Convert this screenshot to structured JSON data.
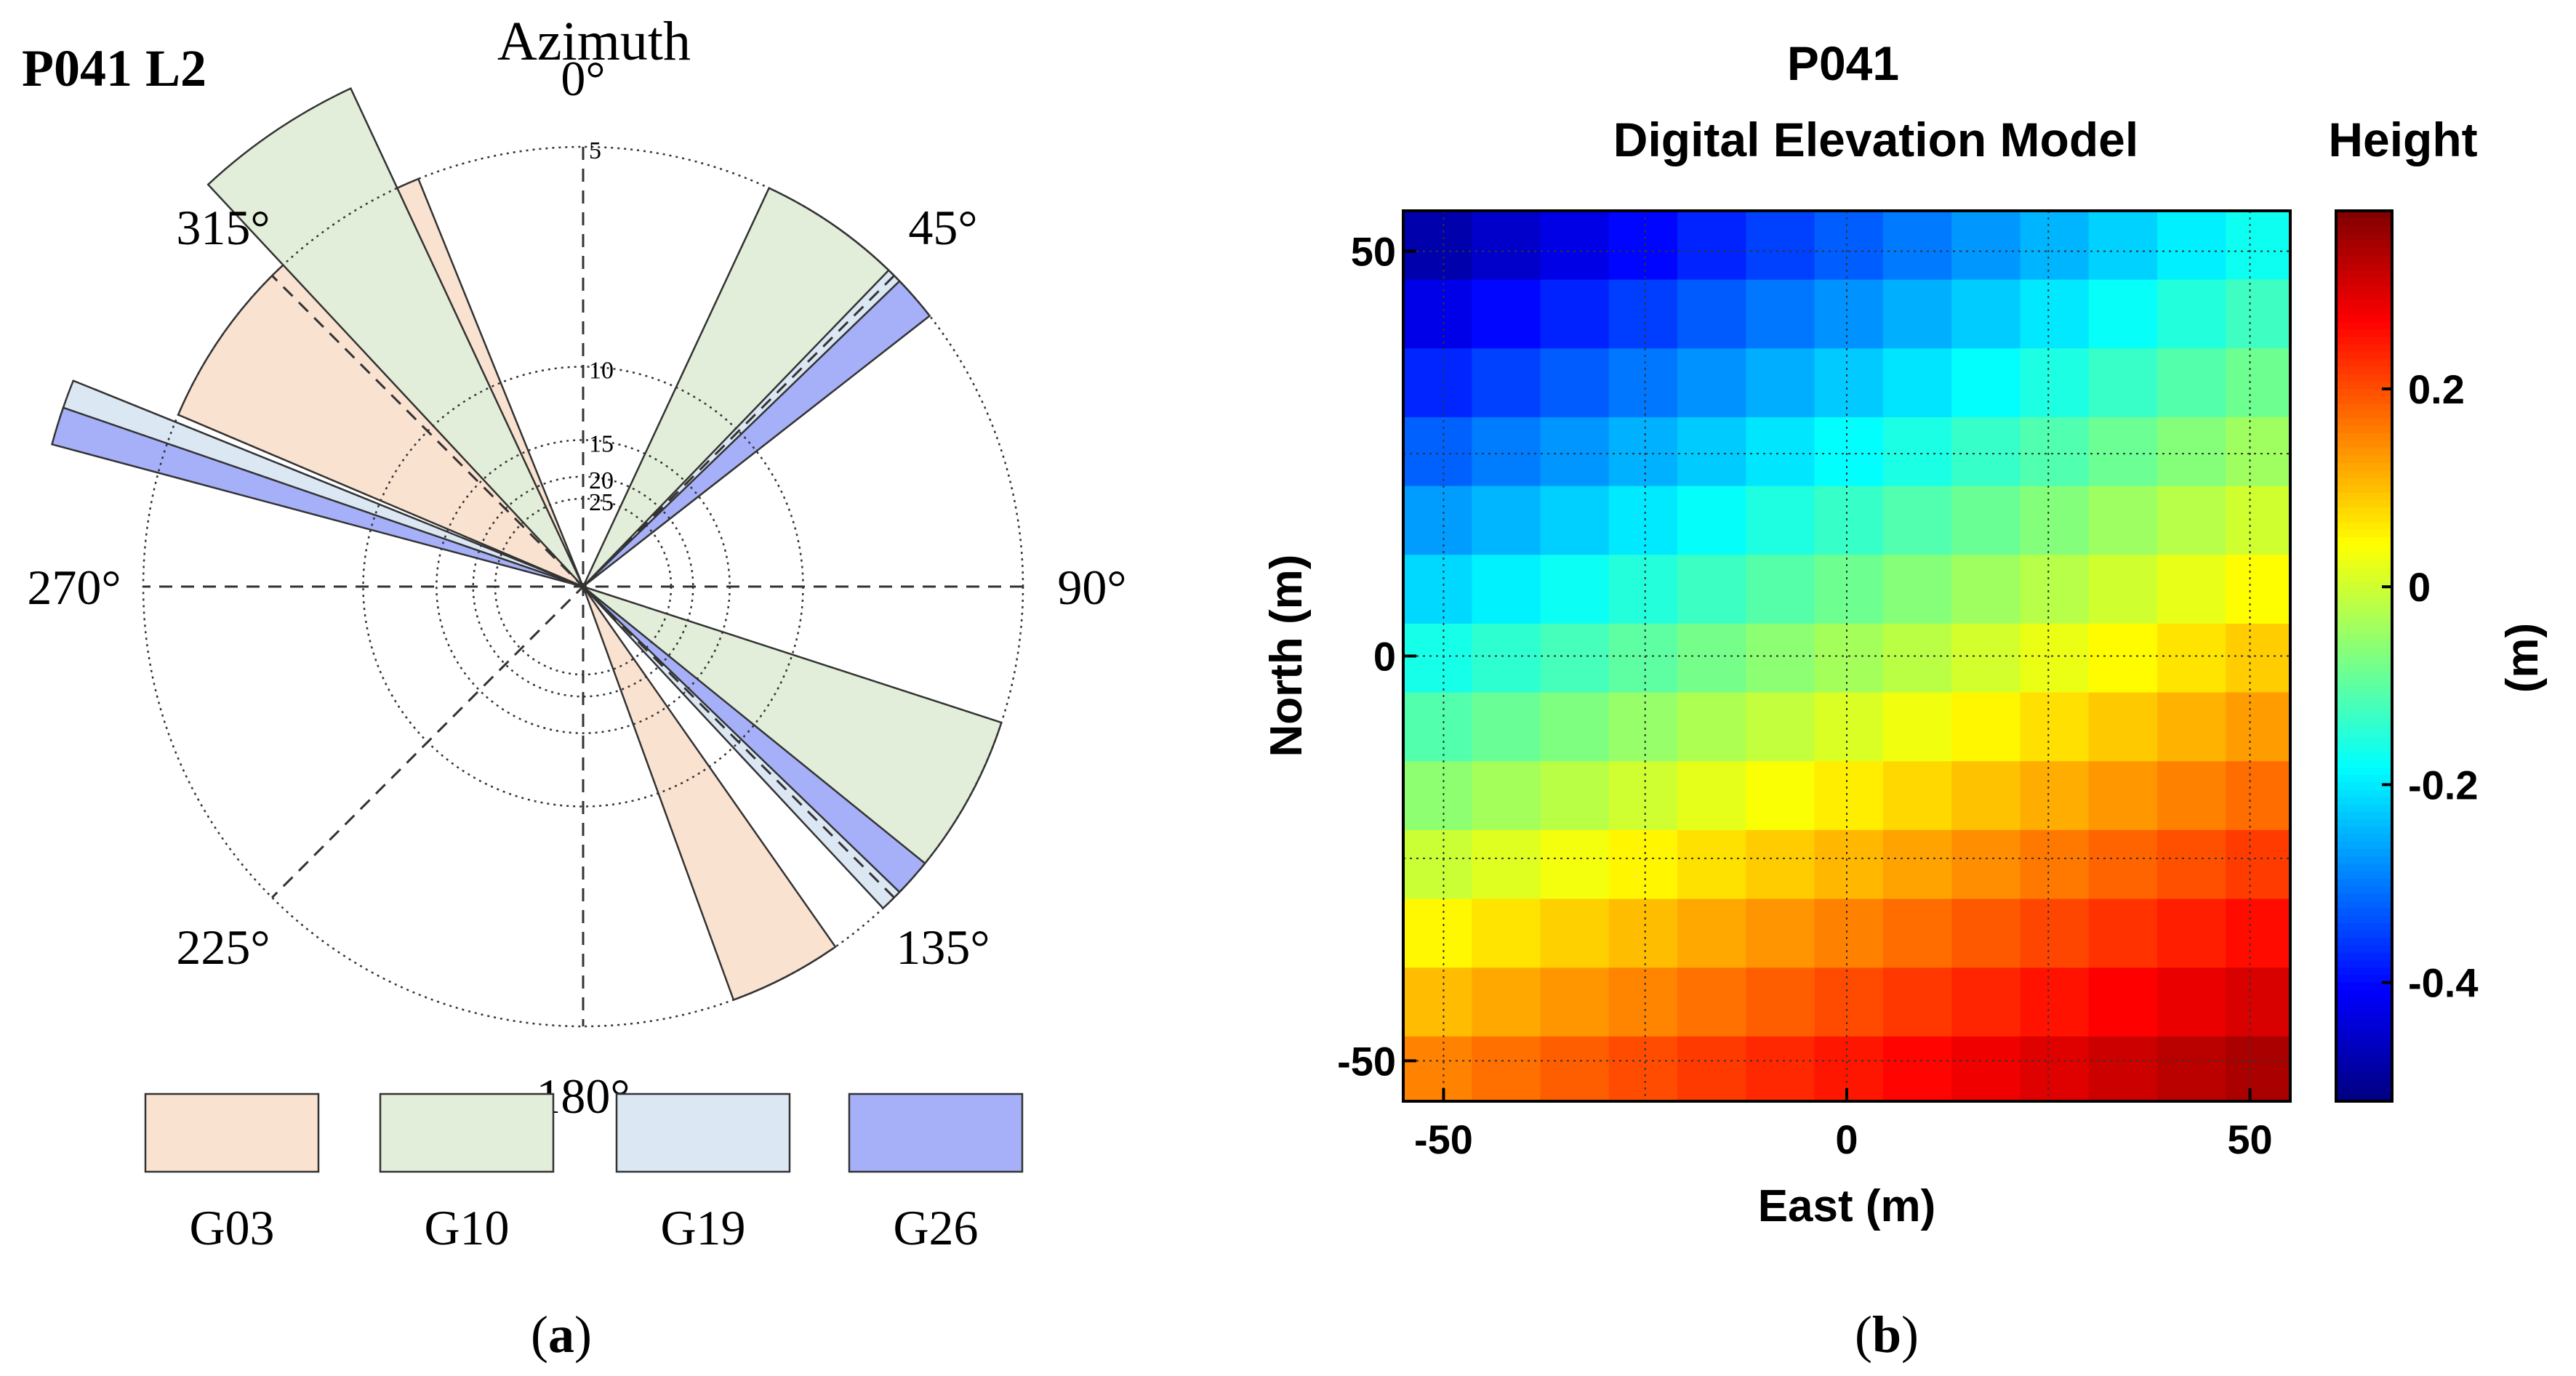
{
  "panel_a": {
    "station_label": "P041 L2",
    "azimuth_title": "Azimuth",
    "caption": "a",
    "chart_data": {
      "type": "polar-wedge",
      "title": "Azimuth",
      "station": "P041 L2",
      "angle_labels": [
        {
          "deg": 0,
          "text": "0°"
        },
        {
          "deg": 45,
          "text": "45°"
        },
        {
          "deg": 90,
          "text": "90°"
        },
        {
          "deg": 135,
          "text": "135°"
        },
        {
          "deg": 180,
          "text": "180°"
        },
        {
          "deg": 225,
          "text": "225°"
        },
        {
          "deg": 270,
          "text": "270°"
        },
        {
          "deg": 315,
          "text": "315°"
        }
      ],
      "radial_labels": [
        {
          "elev": 5,
          "text": "5"
        },
        {
          "elev": 10,
          "text": "10"
        },
        {
          "elev": 15,
          "text": "15"
        },
        {
          "elev": 20,
          "text": "20"
        },
        {
          "elev": 25,
          "text": "25"
        }
      ],
      "series": [
        {
          "name": "G03",
          "color": "#fae2d1",
          "wedges": [
            {
              "az_start": 293,
              "az_end": 338,
              "elev": 5
            },
            {
              "az_start": 30,
              "az_end": 48,
              "elev": 5
            },
            {
              "az_start": 145,
              "az_end": 160,
              "elev": 5
            }
          ]
        },
        {
          "name": "G10",
          "color": "#e2eed9",
          "wedges": [
            {
              "az_start": 317,
              "az_end": 335,
              "elev": 4
            },
            {
              "az_start": 25,
              "az_end": 45,
              "elev": 5
            },
            {
              "az_start": 108,
              "az_end": 130,
              "elev": 5
            }
          ]
        },
        {
          "name": "G19",
          "color": "#dce7f4",
          "wedges": [
            {
              "az_start": 288,
              "az_end": 292,
              "elev": 4
            },
            {
              "az_start": 44,
              "az_end": 49,
              "elev": 5
            },
            {
              "az_start": 131,
              "az_end": 137,
              "elev": 5
            }
          ]
        },
        {
          "name": "G26",
          "color": "#a6b0f8",
          "wedges": [
            {
              "az_start": 285,
              "az_end": 289,
              "elev": 4
            },
            {
              "az_start": 46,
              "az_end": 52,
              "elev": 5
            },
            {
              "az_start": 129,
              "az_end": 134,
              "elev": 5
            }
          ]
        }
      ]
    }
  },
  "panel_b": {
    "caption": "b",
    "colorbar_title": "Height",
    "chart_data": {
      "type": "heatmap",
      "title": "P041",
      "subtitle": "Digital Elevation Model",
      "xlabel": "East (m)",
      "ylabel": "North (m)",
      "colorbar_label": "(m)",
      "colorbar_title": "Height",
      "xlim": [
        -55,
        55
      ],
      "ylim": [
        -55,
        55
      ],
      "xticks": [
        -50,
        0,
        50
      ],
      "yticks": [
        50,
        0,
        -50
      ],
      "clim": [
        -0.52,
        0.38
      ],
      "cticks": [
        0.2,
        0,
        -0.2,
        -0.4
      ],
      "grid_spacing": 8.5,
      "colormap": "jet",
      "surface": {
        "top_left": -0.52,
        "top_right": -0.18,
        "bottom_left": 0.17,
        "bottom_right": 0.37
      }
    }
  }
}
